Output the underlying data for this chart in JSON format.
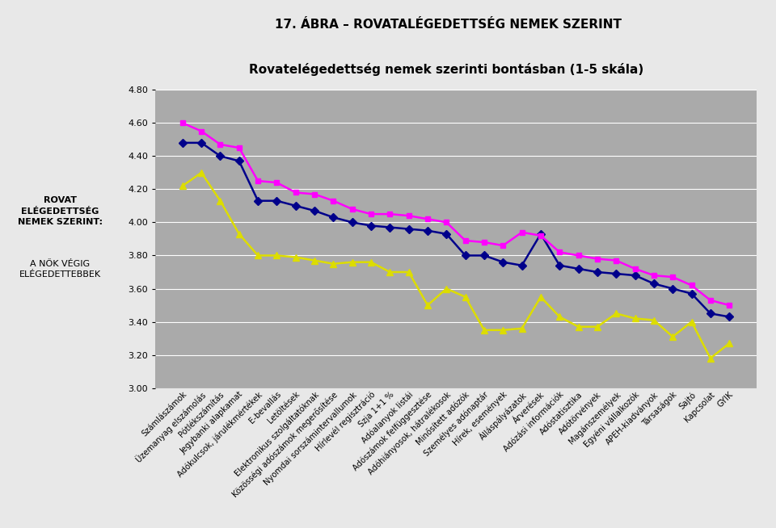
{
  "title": "Rovatelégedettség nemek szerinti bontásban (1-5 skála)",
  "main_title": "17. ÁBRA – ROVATALÉGEDETTSÉG NEMEK SZERINT",
  "categories": [
    "Számlászámok",
    "Üzemanyag elszámolás",
    "Pótlékszámítás",
    "Jegybanki alapkamat",
    "Adókulcsok, járulékmértékek",
    "E-bevallás",
    "Letöltések",
    "Elektronikus szolgáltatóknak",
    "Közösségi adószámok megerősítése",
    "Nyomdai sorszámintervallumok",
    "Hírlevél regisztráció",
    "Szja 1+1 %",
    "Adóalanyok listái",
    "Adószámok felfüggesztése",
    "Adóhiányosok, hátralékosok",
    "Minősített adózók",
    "Személyes adónaptár",
    "Hírek, események",
    "Álláspályázatok",
    "Árverések",
    "Adózási információk",
    "Adóstatisztika",
    "Adótörvények",
    "Magánszemélyek",
    "Egyéni vállalkozók",
    "APEH-kiadványok",
    "Társaságok",
    "Sajtó",
    "Kapcsolat",
    "GYIK"
  ],
  "atlag": [
    4.48,
    4.48,
    4.4,
    4.37,
    4.13,
    4.13,
    4.1,
    4.07,
    4.03,
    4.0,
    3.98,
    3.97,
    3.96,
    3.95,
    3.93,
    3.8,
    3.8,
    3.76,
    3.74,
    3.93,
    3.74,
    3.72,
    3.7,
    3.69,
    3.68,
    3.63,
    3.6,
    3.57,
    3.45,
    3.43
  ],
  "nok": [
    4.6,
    4.55,
    4.47,
    4.45,
    4.25,
    4.24,
    4.18,
    4.17,
    4.13,
    4.08,
    4.05,
    4.05,
    4.04,
    4.02,
    4.0,
    3.89,
    3.88,
    3.86,
    3.94,
    3.92,
    3.82,
    3.8,
    3.78,
    3.77,
    3.72,
    3.68,
    3.67,
    3.62,
    3.53,
    3.5
  ],
  "ferfiak": [
    4.22,
    4.3,
    4.13,
    3.93,
    3.8,
    3.8,
    3.79,
    3.77,
    3.75,
    3.76,
    3.76,
    3.7,
    3.7,
    3.5,
    3.6,
    3.55,
    3.35,
    3.35,
    3.36,
    3.55,
    3.43,
    3.37,
    3.37,
    3.45,
    3.42,
    3.41,
    3.31,
    3.4,
    3.18,
    3.27
  ],
  "ylim": [
    3.0,
    4.8
  ],
  "yticks": [
    3.0,
    3.2,
    3.4,
    3.6,
    3.8,
    4.0,
    4.2,
    4.4,
    4.6,
    4.8
  ],
  "atlag_color": "#00008B",
  "nok_color": "#FF00FF",
  "ferfiak_color": "#DDDD00",
  "plot_bg_color": "#AAAAAA",
  "outer_bg_color": "#C8DFF0",
  "left_panel_color": "#D0D0D0",
  "fig_bg_color": "#E8E8E8"
}
